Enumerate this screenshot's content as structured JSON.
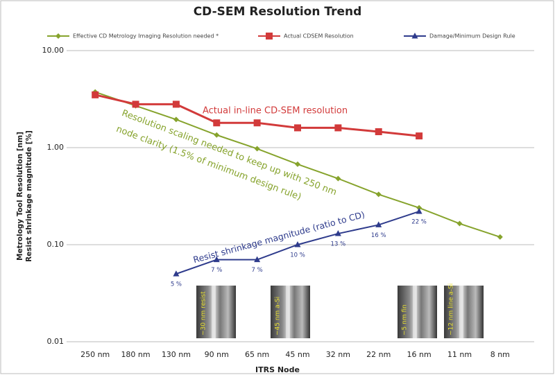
{
  "chart_data": {
    "type": "line",
    "title": "CD-SEM Resolution Trend",
    "x_label": "ITRS Node",
    "y_label": [
      "Metrology Tool Resolution [nm]",
      "Resist shrinkage magnitude [%]"
    ],
    "categories": [
      "250 nm",
      "180 nm",
      "130 nm",
      "90 nm",
      "65 nm",
      "45 nm",
      "32 nm",
      "22 nm",
      "16 nm",
      "11 nm",
      "8 nm"
    ],
    "log_y": true,
    "grid": true,
    "legend_position": "top",
    "ylim": [
      0.01,
      10
    ],
    "yticks": [
      {
        "value": 10,
        "label": "10.00"
      },
      {
        "value": 1,
        "label": "1.00"
      },
      {
        "value": 0.1,
        "label": "0.10"
      },
      {
        "value": 0.01,
        "label": "0.01"
      }
    ],
    "series": [
      {
        "name": "Effective CD Metrology Imaging Resolution needed *",
        "color": "#86a32c",
        "marker": "diamond",
        "values": [
          3.75,
          2.7,
          1.95,
          1.35,
          0.975,
          0.675,
          0.48,
          0.33,
          0.24,
          0.165,
          0.12
        ]
      },
      {
        "name": "Actual CDSEM Resolution",
        "color": "#d23a3a",
        "marker": "square",
        "values": [
          3.5,
          2.8,
          2.8,
          1.8,
          1.8,
          1.6,
          1.6,
          1.46,
          1.32,
          null,
          null
        ]
      },
      {
        "name": "Damage/Minimum Design Rule",
        "color": "#2e3b8c",
        "marker": "triangle",
        "values": [
          null,
          null,
          0.05,
          0.07,
          0.07,
          0.1,
          0.13,
          0.16,
          0.22,
          null,
          null
        ],
        "value_labels": [
          null,
          null,
          "5 %",
          "7 %",
          "7 %",
          "10 %",
          "13 %",
          "16 %",
          "22 %",
          null,
          null
        ]
      }
    ],
    "annotations": [
      {
        "text": "Actual in-line CD-SEM  resolution",
        "color": "#d23a3a"
      },
      {
        "text": "Resolution scaling needed to keep up with 250 nm",
        "color": "#86a32c"
      },
      {
        "text": "node clarity (1.5% of minimum design rule)",
        "color": "#86a32c"
      },
      {
        "text": "Resist shrinkage magnitude (ratio to CD)",
        "color": "#2e3b8c"
      }
    ],
    "image_labels": [
      "~30 nm resist",
      "~45 nm a-Si",
      "~5 nm fin",
      "~12 nm line a-Si"
    ]
  }
}
